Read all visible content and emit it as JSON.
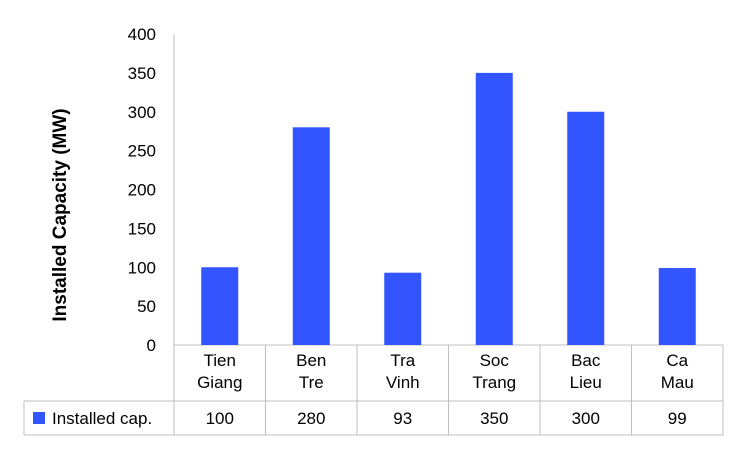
{
  "chart_data": {
    "type": "bar",
    "title": "",
    "xlabel": "",
    "ylabel": "Installed Capacity (MW)",
    "ylim": [
      0,
      400
    ],
    "yticks": [
      0,
      50,
      100,
      150,
      200,
      250,
      300,
      350,
      400
    ],
    "grid": false,
    "categories": [
      [
        "Tien",
        "Giang"
      ],
      [
        "Ben",
        "Tre"
      ],
      [
        "Tra",
        "Vinh"
      ],
      [
        "Soc",
        "Trang"
      ],
      [
        "Bac",
        "Lieu"
      ],
      [
        "Ca",
        "Mau"
      ]
    ],
    "series": [
      {
        "name": "Installed cap.",
        "color": "#3355ff",
        "values": [
          100,
          280,
          93,
          350,
          300,
          99
        ]
      }
    ],
    "data_table": true,
    "legend_placement": "data-table-left"
  }
}
